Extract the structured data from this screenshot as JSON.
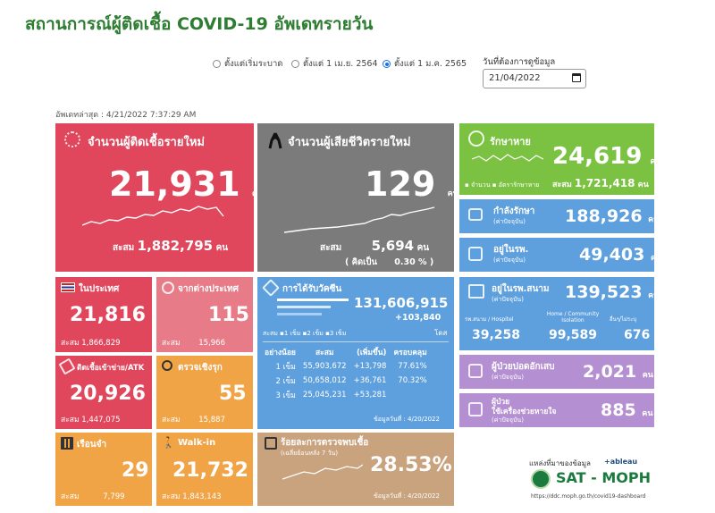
{
  "title": "สถานการณ์ผู้ติดเชื้อ COVID-19 อัพเดทรายวัน",
  "filters": {
    "options": [
      "ตั้งแต่เริ่มระบาด",
      "ตั้งแต่ 1 เม.ย. 2564",
      "ตั้งแต่ 1 ม.ค. 2565"
    ],
    "selected_index": 2,
    "date_label": "วันที่ต้องการดูข้อมูล",
    "date_value": "21/04/2022"
  },
  "updated": "อัพเดทล่าสุด : 4/21/2022 7:37:29 AM",
  "unit": "คน",
  "new_cases": {
    "label": "จำนวนผู้ติดเชื้อรายใหม่",
    "value": "21,931",
    "cum_label": "สะสม",
    "cum_value": "1,882,795"
  },
  "new_deaths": {
    "label": "จำนวนผู้เสียชีวิตรายใหม่",
    "value": "129",
    "cum_label": "สะสม",
    "cum_value": "5,694",
    "pct_label": "( คิดเป็น",
    "pct_value": "0.30 % )"
  },
  "recovered": {
    "label": "รักษาหาย",
    "value": "24,619",
    "legend1": "จำนวน",
    "legend2": "อัตรารักษาหาย",
    "cum_label": "สะสม",
    "cum_value": "1,721,418"
  },
  "treating": {
    "label": "กำลังรักษา",
    "sub": "(ค่าปัจจุบัน)",
    "value": "188,926"
  },
  "in_hospital": {
    "label": "อยู่ในรพ.",
    "sub": "(ค่าปัจจุบัน)",
    "value": "49,403"
  },
  "field_hospital": {
    "label": "อยู่ในรพ.สนาม",
    "sub": "(ค่าปัจจุบัน)",
    "value": "139,523",
    "cols": [
      {
        "label": "รพ.สนาม / Hospitel",
        "value": "39,258"
      },
      {
        "label": "Home / Community Isolation",
        "value": "99,589"
      },
      {
        "label": "อื่นๆ/ไม่ระบุ",
        "value": "676"
      }
    ]
  },
  "severe_lung": {
    "label": "ผู้ป่วยปอดอักเสบ",
    "sub": "(ค่าปัจจุบัน)",
    "value": "2,021"
  },
  "ventilator": {
    "label": "ผู้ป่วย",
    "label2": "ใช้เครื่องช่วยหายใจ",
    "sub": "(ค่าปัจจุบัน)",
    "value": "885"
  },
  "domestic": {
    "label": "ในประเทศ",
    "value": "21,816",
    "cum_label": "สะสม",
    "cum_value": "1,866,829"
  },
  "imported": {
    "label": "จากต่างประเทศ",
    "value": "115",
    "cum_label": "สะสม",
    "cum_value": "15,966"
  },
  "atk": {
    "label": "ติดเชื้อเข้าข่าย/ATK",
    "value": "20,926",
    "cum_label": "สะสม",
    "cum_value": "1,447,075"
  },
  "active_search": {
    "label": "ตรวจเชิงรุก",
    "value": "55",
    "cum_label": "สะสม",
    "cum_value": "15,887"
  },
  "prison": {
    "label": "เรือนจำ",
    "value": "29",
    "cum_label": "สะสม",
    "cum_value": "7,799"
  },
  "walkin": {
    "label": "Walk-in",
    "value": "21,732",
    "cum_label": "สะสม",
    "cum_value": "1,843,143"
  },
  "vaccine": {
    "label": "การได้รับวัคซีน",
    "total": "131,606,915",
    "daily": "+103,840",
    "dose_unit": "โดส",
    "legend_prefix": "สะสม",
    "legend": [
      "1 เข็ม",
      "2 เข็ม",
      "3 เข็ม"
    ],
    "headers": [
      "อย่างน้อย",
      "สะสม",
      "(เพิ่มขึ้น)",
      "ครอบคลุม"
    ],
    "rows": [
      [
        "1 เข็ม",
        "55,903,672",
        "+13,798",
        "77.61%"
      ],
      [
        "2 เข็ม",
        "50,658,012",
        "+36,761",
        "70.32%"
      ],
      [
        "3 เข็ม",
        "25,045,231",
        "+53,281",
        ""
      ]
    ],
    "data_date": "ข้อมูลวันที่ : 4/20/2022"
  },
  "positivity": {
    "label": "ร้อยละการตรวจพบเชื้อ",
    "sub": "(เฉลี่ยย้อนหลัง 7 วัน)",
    "value": "28.53%",
    "data_date": "ข้อมูลวันที่ : 4/20/2022"
  },
  "source": {
    "label": "แหล่งที่มาของข้อมูล",
    "tableau": "+ableau",
    "brand": "SAT - MOPH",
    "url": "https://ddc.moph.go.th/covid19-dashboard"
  },
  "colors": {
    "red": "#e0475c",
    "gray": "#7b7b7b",
    "green": "#7cc242",
    "blue": "#5e9fdd",
    "pink": "#e77b87",
    "orange": "#f0a446",
    "tan": "#c9a27e",
    "purple": "#b48fd1",
    "title_green": "#2e7d32"
  }
}
